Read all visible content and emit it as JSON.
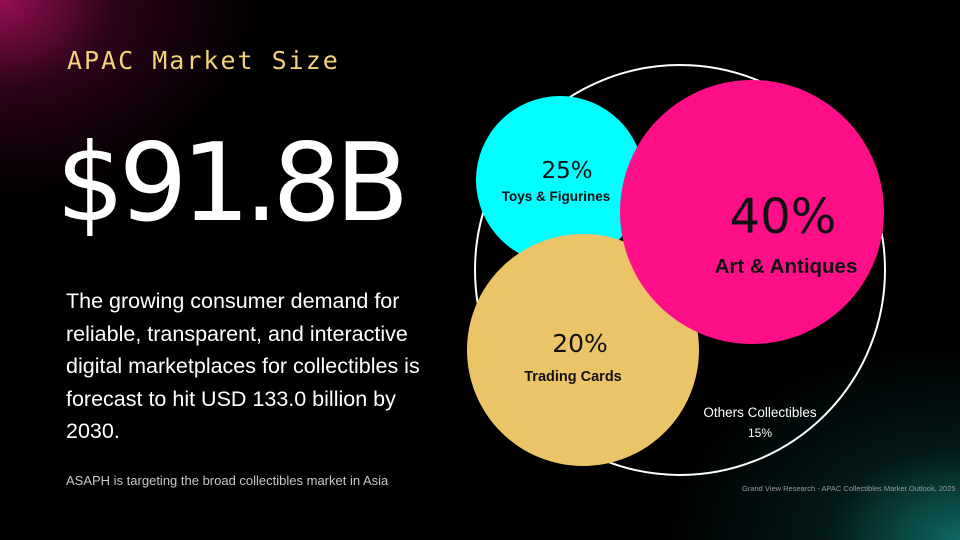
{
  "slide": {
    "title": "APAC Market Size",
    "headline_value": "$91.8B",
    "description": "The growing consumer demand for reliable, transparent, and interactive digital marketplaces for collectibles is forecast to hit USD 133.0 billion by 2030.",
    "note": "ASAPH is targeting the broad collectibles market in Asia",
    "source": "Grand View Research - APAC Collectibles Market Outlook, 2025"
  },
  "segments": [
    {
      "id": "toys",
      "percent_label": "25%",
      "category": "Toys & Figurines",
      "value": 25,
      "color": "#00ffff"
    },
    {
      "id": "art",
      "percent_label": "40%",
      "category": "Art & Antiques",
      "value": 40,
      "color": "#ff0f87"
    },
    {
      "id": "cards",
      "percent_label": "20%",
      "category": "Trading Cards",
      "value": 20,
      "color": "#ecc468"
    },
    {
      "id": "others",
      "percent_label": "15%",
      "category": "Others Collectibles",
      "value": 15,
      "color": "#ffffff"
    }
  ]
}
